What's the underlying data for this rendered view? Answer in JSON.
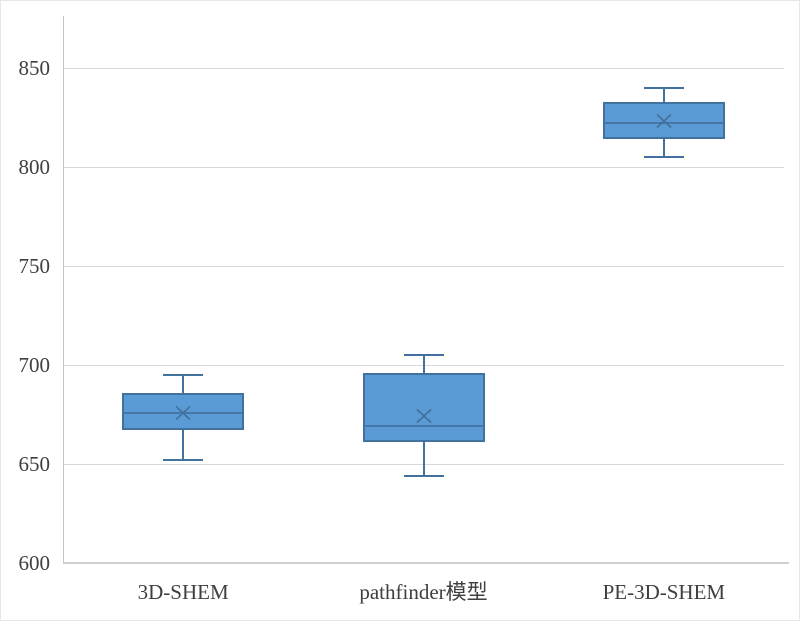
{
  "chart_data": {
    "type": "boxplot",
    "title": "",
    "xlabel": "",
    "ylabel": "",
    "categories": [
      "3D-SHEM",
      "pathfinder模型",
      "PE-3D-SHEM"
    ],
    "series": [
      {
        "name": "3D-SHEM",
        "min": 652,
        "q1": 667,
        "median": 676,
        "q3": 686,
        "max": 695,
        "mean": 676
      },
      {
        "name": "pathfinder模型",
        "min": 644,
        "q1": 661,
        "median": 669,
        "q3": 696,
        "max": 705,
        "mean": 674
      },
      {
        "name": "PE-3D-SHEM",
        "min": 805,
        "q1": 814,
        "median": 822,
        "q3": 833,
        "max": 840,
        "mean": 823
      }
    ],
    "y_ticks": [
      600,
      650,
      700,
      750,
      800,
      850
    ],
    "ylim": [
      600,
      876
    ],
    "grid": "horizontal-gridlines",
    "legend": "none"
  },
  "colors": {
    "box_fill": "#5b9bd5",
    "box_border": "#41719c",
    "gridline": "#d9d9d9",
    "axis_line": "#c3c3c3",
    "tick_label": "#3f3f3f",
    "background": "#ffffff",
    "frame_border": "#e7e7e7"
  }
}
